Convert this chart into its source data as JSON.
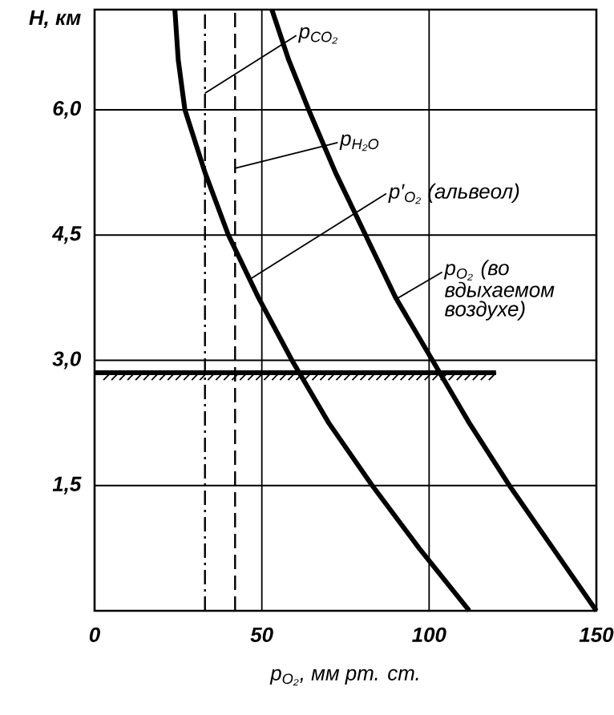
{
  "chart_data": {
    "type": "line",
    "xlabel": "p$_{O₂}$, мм рт. ст.",
    "ylabel": "H, км",
    "xlim": [
      0,
      150
    ],
    "ylim": [
      0,
      7.2
    ],
    "xticks": [
      0,
      50,
      100,
      150
    ],
    "yticks": [
      {
        "value": 1.5,
        "label": "1,5"
      },
      {
        "value": 3.0,
        "label": "3,0"
      },
      {
        "value": 4.5,
        "label": "4,5"
      },
      {
        "value": 6.0,
        "label": "6,0"
      }
    ],
    "grid": true,
    "marker": "none",
    "series": [
      {
        "color": "#000000",
        "x": [
          150,
          137,
          124,
          112,
          101,
          90,
          81,
          72,
          64,
          58,
          53
        ],
        "values": [
          0,
          0.75,
          1.5,
          2.25,
          3.0,
          3.75,
          4.5,
          5.25,
          6.0,
          6.6,
          7.2
        ]
      },
      {
        "color": "#000000",
        "x": [
          112,
          97,
          83,
          70,
          59,
          49,
          40,
          33,
          27,
          25,
          24
        ],
        "values": [
          0,
          0.75,
          1.5,
          2.25,
          3.0,
          3.75,
          4.5,
          5.25,
          6.0,
          6.6,
          7.2
        ]
      },
      {
        "color": "#000000",
        "line_style": "solid",
        "x": [
          0,
          120
        ],
        "values": [
          2.85,
          2.85
        ]
      }
    ],
    "ref_lines": [
      {
        "axis": "x",
        "value": 33,
        "line_style": "dashdot",
        "color": "#000000"
      },
      {
        "axis": "x",
        "value": 42,
        "line_style": "dashed",
        "color": "#000000"
      }
    ],
    "annotations": [
      {
        "text": "p$_{CO₂}$",
        "x": 33,
        "y": 6.2
      },
      {
        "text": "p$_{H₂O}$",
        "x": 42,
        "y": 5.3
      },
      {
        "text": "p′$_{O₂}$ (альвеол)",
        "x": 46,
        "y": 3.96
      },
      {
        "text": "p$_{O₂}$ (во вдыхаемом воздухе)",
        "x": 90,
        "y": 3.73
      }
    ]
  }
}
